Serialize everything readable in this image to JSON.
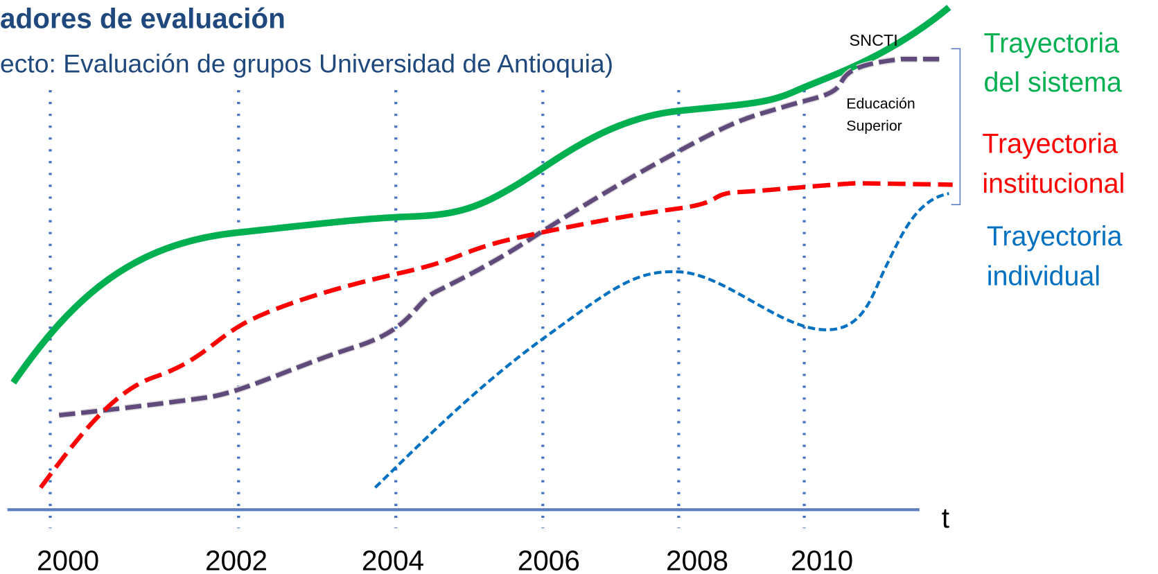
{
  "header": {
    "title": "adores de evaluación",
    "subtitle": "ecto: Evaluación de grupos Universidad de Antioquia)"
  },
  "years": [
    "2000",
    "2002",
    "2004",
    "2006",
    "2008",
    "2010"
  ],
  "axis_label": "t",
  "curve_labels": {
    "sncti": "SNCTI",
    "higher_education": [
      "Educación",
      "Superior"
    ]
  },
  "legend": [
    {
      "lines": [
        "Trayectoria",
        "del sistema"
      ]
    },
    {
      "lines": [
        "Trayectoria",
        "institucional"
      ]
    },
    {
      "lines": [
        "Trayectoria",
        "individual"
      ]
    }
  ]
}
